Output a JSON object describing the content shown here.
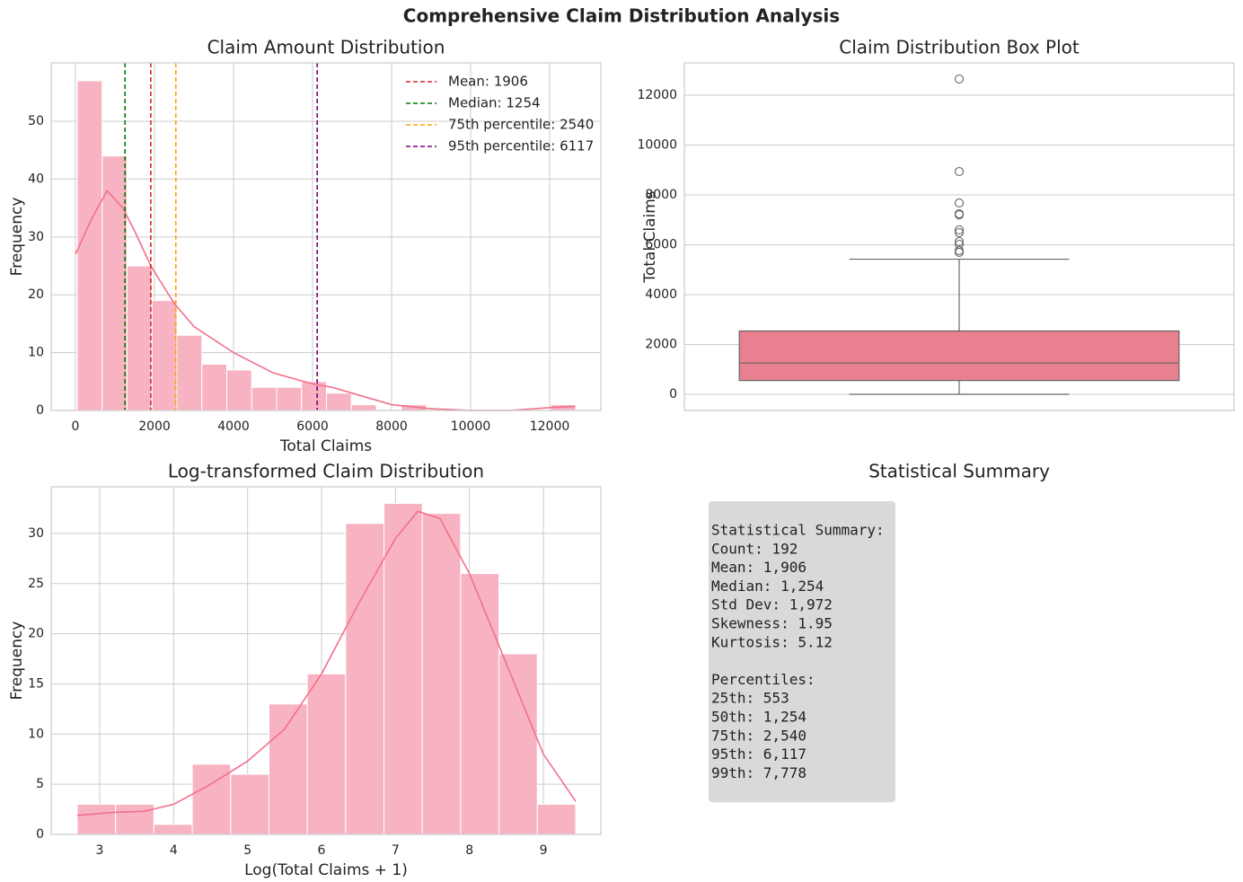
{
  "title": "Comprehensive Claim Distribution Analysis",
  "chart_data": [
    {
      "type": "histogram",
      "title": "Claim Amount Distribution",
      "xlabel": "Total Claims",
      "ylabel": "Frequency",
      "bins": [
        45,
        675.7,
        1306.4,
        1937.1,
        2567.8,
        3198.5,
        3829.2,
        4459.9,
        5090.6,
        5721.3,
        6352,
        6982.7,
        7613.4,
        8244.1,
        8874.8,
        9505.5,
        10136.2,
        10766.9,
        11397.6,
        12028.3,
        12659
      ],
      "values": [
        57,
        44,
        25,
        19,
        13,
        8,
        7,
        4,
        4,
        5,
        3,
        1,
        0,
        1,
        0,
        0,
        0,
        0,
        0,
        1
      ],
      "color": "#f8b3c3",
      "line_color": "#f2708a",
      "kde": {
        "x": [
          0,
          400,
          800,
          1200,
          1500,
          1906,
          2500,
          3000,
          4000,
          5000,
          6000,
          6500,
          7000,
          8000,
          9000,
          10000,
          11000,
          12000,
          12650
        ],
        "values": [
          27,
          33,
          38,
          35,
          31,
          25,
          18.5,
          14.5,
          10,
          6.5,
          4.6,
          4,
          3,
          1,
          0.3,
          0,
          0,
          0.5,
          0.7
        ]
      },
      "vlines": [
        {
          "name": "Mean: 1906",
          "value": 1906,
          "color": "#d62728"
        },
        {
          "name": "Median: 1254",
          "value": 1254,
          "color": "#008000"
        },
        {
          "name": "75th percentile: 2540",
          "value": 2540,
          "color": "#ffa500"
        },
        {
          "name": "95th percentile: 6117",
          "value": 6117,
          "color": "#800080"
        }
      ],
      "legend": "upper right",
      "xlim": [
        -614,
        13295
      ],
      "xticks": [
        0,
        2000,
        4000,
        6000,
        8000,
        10000,
        12000
      ],
      "ylim": [
        0,
        60.1
      ],
      "yticks": [
        0,
        10,
        20,
        30,
        40,
        50
      ],
      "grid": true
    },
    {
      "type": "box",
      "title": "Claim Distribution Box Plot",
      "ylabel": "Total Claims",
      "whisker_low": 0,
      "q1": 553,
      "median": 1254,
      "q3": 2540,
      "whisker_high": 5420,
      "outliers": [
        12650,
        8937,
        7676,
        7243,
        7200,
        6595,
        6486,
        6126,
        6018,
        5766,
        5694
      ],
      "color": "#e8808f",
      "ylim": [
        -649,
        13297
      ],
      "yticks": [
        0,
        2000,
        4000,
        6000,
        8000,
        10000,
        12000
      ],
      "grid": true
    },
    {
      "type": "histogram",
      "title": "Log-transformed Claim Distribution",
      "xlabel": "Log(Total Claims + 1)",
      "ylabel": "Frequency",
      "bins": [
        2.696,
        3.215,
        3.733,
        4.252,
        4.77,
        5.289,
        5.807,
        6.326,
        6.844,
        7.363,
        7.881,
        8.4,
        8.918,
        9.437
      ],
      "values": [
        3,
        3,
        1,
        7,
        6,
        13,
        16,
        31,
        33,
        32,
        26,
        18,
        3
      ],
      "color": "#f8b3c3",
      "line_color": "#f2708a",
      "kde": {
        "x": [
          2.696,
          3.2,
          3.6,
          4.0,
          4.5,
          5.0,
          5.5,
          6.0,
          6.5,
          7.0,
          7.3,
          7.6,
          8.0,
          8.5,
          9.0,
          9.437
        ],
        "values": [
          1.9,
          2.2,
          2.3,
          3,
          5,
          7.3,
          10.5,
          16,
          23,
          29.5,
          32.2,
          31.5,
          26,
          17,
          8,
          3.3
        ]
      },
      "xlim": [
        2.344,
        9.777
      ],
      "xticks": [
        3,
        4,
        5,
        6,
        7,
        8,
        9
      ],
      "ylim": [
        0,
        34.65
      ],
      "yticks": [
        0,
        5,
        10,
        15,
        20,
        25,
        30
      ],
      "grid": true
    },
    {
      "type": "text",
      "title": "Statistical Summary",
      "blocks": [
        [
          "Statistical Summary:",
          "Count: 192",
          "Mean: 1,906",
          "Median: 1,254",
          "Std Dev: 1,972",
          "Skewness: 1.95",
          "Kurtosis: 5.12"
        ],
        [
          "Percentiles:",
          "25th: 553",
          "50th: 1,254",
          "75th: 2,540",
          "95th: 6,117",
          "99th: 7,778"
        ]
      ]
    }
  ]
}
